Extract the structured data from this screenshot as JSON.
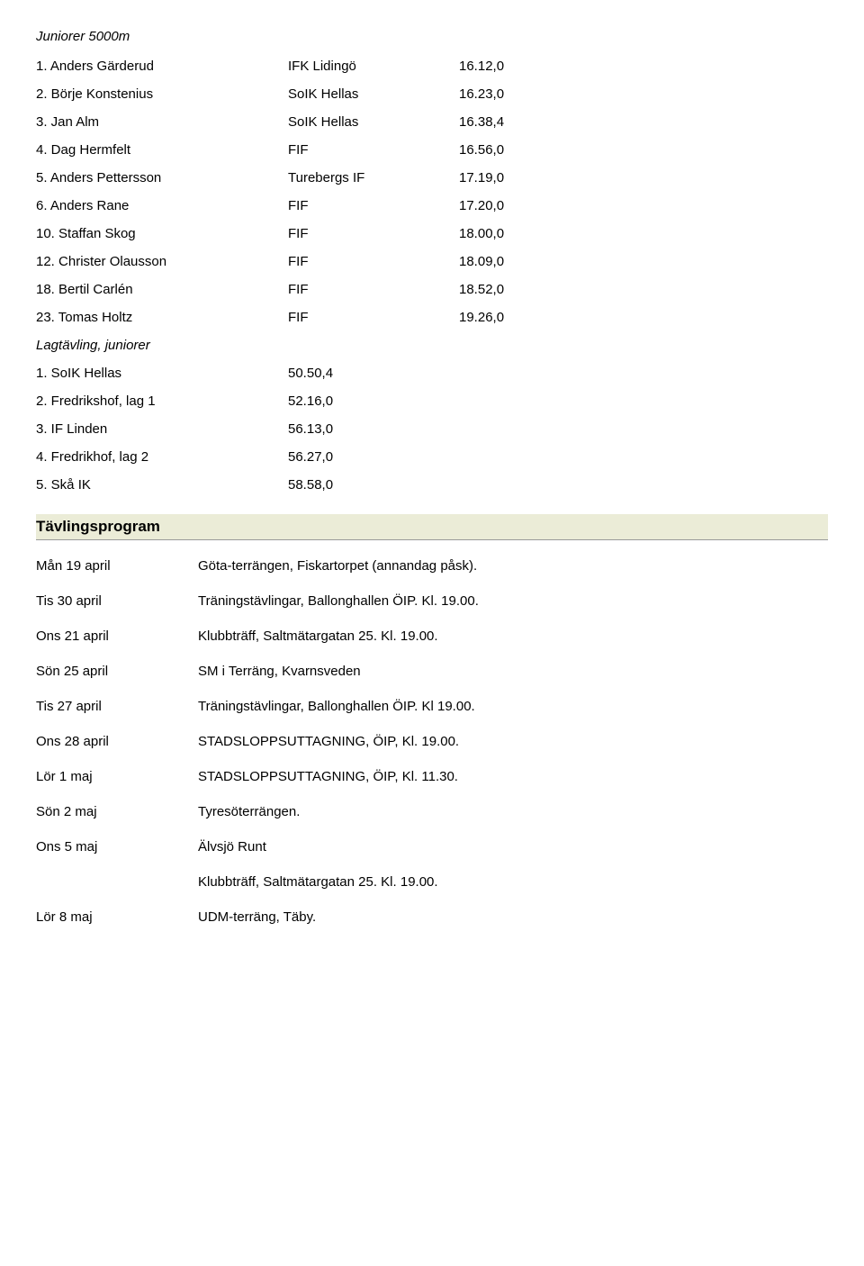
{
  "event_title": "Juniorer 5000m",
  "results": [
    {
      "rank_name": "1. Anders Gärderud",
      "club": "IFK Lidingö",
      "time": "16.12,0"
    },
    {
      "rank_name": "2. Börje Konstenius",
      "club": "SoIK Hellas",
      "time": "16.23,0"
    },
    {
      "rank_name": "3. Jan Alm",
      "club": "SoIK Hellas",
      "time": "16.38,4"
    },
    {
      "rank_name": "4. Dag Hermfelt",
      "club": "FIF",
      "time": "16.56,0"
    },
    {
      "rank_name": "5. Anders Pettersson",
      "club": "Turebergs IF",
      "time": "17.19,0"
    },
    {
      "rank_name": "6. Anders Rane",
      "club": "FIF",
      "time": "17.20,0"
    },
    {
      "rank_name": "10. Staffan Skog",
      "club": "FIF",
      "time": "18.00,0"
    },
    {
      "rank_name": "12. Christer Olausson",
      "club": "FIF",
      "time": "18.09,0"
    },
    {
      "rank_name": "18. Bertil Carlén",
      "club": "FIF",
      "time": "18.52,0"
    },
    {
      "rank_name": "23. Tomas Holtz",
      "club": "FIF",
      "time": "19.26,0"
    }
  ],
  "team_title": "Lagtävling, juniorer",
  "team_results": [
    {
      "rank_name": "1. SoIK Hellas",
      "time": "50.50,4"
    },
    {
      "rank_name": "2. Fredrikshof, lag 1",
      "time": "52.16,0"
    },
    {
      "rank_name": "3. IF Linden",
      "time": "56.13,0"
    },
    {
      "rank_name": "4. Fredrikhof, lag 2",
      "time": "56.27,0"
    },
    {
      "rank_name": "5. Skå IK",
      "time": "58.58,0"
    }
  ],
  "program_heading": "Tävlingsprogram",
  "schedule": [
    {
      "date": "Mån 19 april",
      "desc": "Göta-terrängen, Fiskartorpet (annandag påsk)."
    },
    {
      "date": "Tis 30 april",
      "desc": "Träningstävlingar, Ballonghallen ÖIP. Kl. 19.00."
    },
    {
      "date": "Ons 21 april",
      "desc": "Klubbträff, Saltmätargatan 25. Kl. 19.00."
    },
    {
      "date": "Sön 25 april",
      "desc": "SM i Terräng, Kvarnsveden"
    },
    {
      "date": "Tis 27 april",
      "desc": "Träningstävlingar, Ballonghallen ÖIP. Kl 19.00."
    },
    {
      "date": "Ons 28 april",
      "desc": "STADSLOPPSUTTAGNING, ÖIP, Kl. 19.00."
    },
    {
      "date": "Lör 1 maj",
      "desc": "STADSLOPPSUTTAGNING, ÖIP, Kl. 11.30."
    },
    {
      "date": "Sön 2 maj",
      "desc": "Tyresöterrängen."
    },
    {
      "date": "Ons 5 maj",
      "desc": "Älvsjö Runt"
    },
    {
      "date": "",
      "desc": "Klubbträff, Saltmätargatan 25. Kl. 19.00."
    },
    {
      "date": "Lör 8 maj",
      "desc": "UDM-terräng, Täby."
    }
  ]
}
